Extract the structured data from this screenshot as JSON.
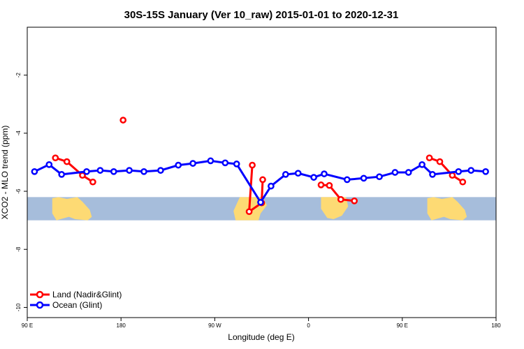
{
  "chart_data": {
    "type": "line",
    "title": "30S-15S January (Ver 10_raw)   2015-01-01 to 2020-12-31",
    "xlabel": "Longitude (deg E)",
    "ylabel": "XCO2 - MLO trend (ppm)",
    "xlim": [
      90,
      540
    ],
    "ylim": [
      -10.35,
      -0.35
    ],
    "x_ticks": [
      {
        "value": 90,
        "label": "90 E"
      },
      {
        "value": 180,
        "label": "180"
      },
      {
        "value": 270,
        "label": "90 W"
      },
      {
        "value": 360,
        "label": "0"
      },
      {
        "value": 450,
        "label": "90 E"
      },
      {
        "value": 540,
        "label": "180"
      }
    ],
    "y_ticks": [
      {
        "value": -2,
        "label": "-2"
      },
      {
        "value": -4,
        "label": "-4"
      },
      {
        "value": -6,
        "label": "-6"
      },
      {
        "value": -8,
        "label": "-8"
      },
      {
        "value": -10,
        "label": "-10"
      }
    ],
    "grid": false,
    "legend_position": "bottom-left",
    "map_strip": {
      "ylim": [
        -7.0,
        -6.2
      ],
      "ocean_color": "#a6bddb",
      "land_color": "#fdda74"
    },
    "series": [
      {
        "name": "Land (Nadir&Glint)",
        "color": "#ff0000",
        "segments": [
          [
            [
              117,
              -4.85
            ],
            [
              128,
              -4.98
            ],
            [
              143,
              -5.45
            ],
            [
              153,
              -5.68
            ]
          ],
          [
            [
              182,
              -3.55
            ]
          ],
          [
            [
              306,
              -5.1
            ],
            [
              306,
              -5.1
            ],
            [
              306,
              -5.1
            ]
          ],
          [
            [
              306,
              -5.1
            ],
            [
              306,
              -5.1
            ]
          ],
          [
            [
              306,
              -5.1
            ],
            [
              306,
              -5.1
            ]
          ],
          [
            [
              306,
              -5.1
            ],
            [
              306,
              -5.1
            ]
          ]
        ]
      },
      {
        "name": "Ocean (Glint)",
        "color": "#0000ff",
        "segments": [
          [
            [
              97,
              -5.32
            ],
            [
              111,
              -5.08
            ],
            [
              123,
              -5.42
            ],
            [
              147,
              -5.32
            ],
            [
              160,
              -5.28
            ],
            [
              173,
              -5.32
            ],
            [
              188,
              -5.28
            ],
            [
              202,
              -5.32
            ],
            [
              218,
              -5.28
            ],
            [
              235,
              -5.1
            ],
            [
              249,
              -5.04
            ],
            [
              266,
              -4.95
            ],
            [
              280,
              -5.02
            ],
            [
              291,
              -5.06
            ],
            [
              314,
              -6.38
            ],
            [
              324,
              -5.82
            ],
            [
              338,
              -5.42
            ],
            [
              350,
              -5.38
            ],
            [
              365,
              -5.52
            ],
            [
              375,
              -5.4
            ],
            [
              397,
              -5.6
            ],
            [
              413,
              -5.55
            ],
            [
              428,
              -5.5
            ],
            [
              443,
              -5.35
            ],
            [
              456,
              -5.35
            ],
            [
              469,
              -5.08
            ],
            [
              479,
              -5.42
            ],
            [
              504,
              -5.32
            ],
            [
              516,
              -5.28
            ],
            [
              530,
              -5.32
            ]
          ]
        ]
      }
    ]
  }
}
